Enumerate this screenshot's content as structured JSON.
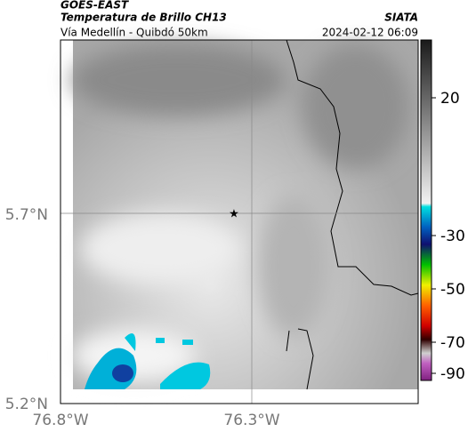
{
  "header": {
    "source": "GOES-EAST",
    "product": "Temperatura de Brillo CH13",
    "route": "Vía Medellín - Quibdó 50km",
    "agency": "SIATA",
    "timestamp": "2024-02-12 06:09"
  },
  "axes": {
    "x_labels": [
      "76.8°W",
      "76.3°W"
    ],
    "y_labels": [
      "5.7°N",
      "5.2°N"
    ]
  },
  "colorbar": {
    "ticks": [
      20,
      -30,
      -50,
      -70,
      -90
    ]
  }
}
